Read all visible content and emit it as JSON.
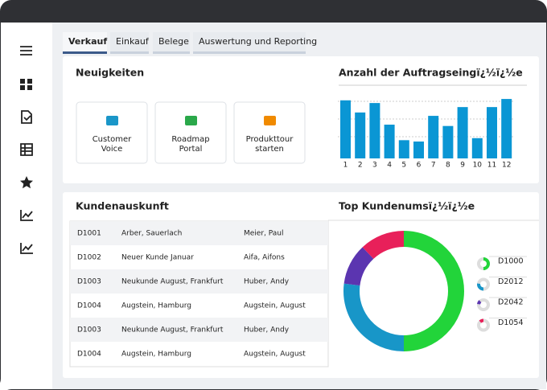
{
  "tabs": [
    "Verkauf",
    "Einkauf",
    "Belege",
    "Auswertung und Reporting"
  ],
  "news": {
    "title": "Neuigkeiten",
    "tiles": [
      [
        "Customer",
        "Voice"
      ],
      [
        "Roadmap",
        "Portal"
      ],
      [
        "Produkttour",
        "starten"
      ]
    ]
  },
  "orders_chart": {
    "type": "bar",
    "title": "Anzahl der Auftragseingï¿½ï¿½e",
    "categories": [
      "1",
      "2",
      "3",
      "4",
      "5",
      "6",
      "7",
      "8",
      "9",
      "10",
      "11",
      "12"
    ],
    "values": [
      86,
      68,
      82,
      50,
      27,
      25,
      63,
      48,
      76,
      30,
      76,
      88
    ],
    "color": "#0a96d4",
    "ylim": [
      0,
      100
    ]
  },
  "customers": {
    "title": "Kundenauskunft",
    "rows": [
      [
        "D1001",
        "Arber, Sauerlach",
        "Meier, Paul"
      ],
      [
        "D1002",
        "Neuer Kunde Januar",
        "Aifa, Aifons"
      ],
      [
        "D1003",
        "Neukunde August, Frankfurt",
        "Huber, Andy"
      ],
      [
        "D1004",
        "Augstein, Hamburg",
        "Augstein, August"
      ],
      [
        "D1003",
        "Neukunde August, Frankfurt",
        "Huber, Andy"
      ],
      [
        "D1004",
        "Augstein, Hamburg",
        "Augstein, August"
      ]
    ]
  },
  "revenue_chart": {
    "type": "donut",
    "title": "Top Kundenumsï¿½ï¿½e",
    "categories": [
      "D1000",
      "D2012",
      "D2042",
      "D1054"
    ],
    "values": [
      50,
      27,
      11,
      12
    ],
    "colors": [
      "#22d43a",
      "#1896c8",
      "#5b35b0",
      "#e8205a"
    ]
  }
}
